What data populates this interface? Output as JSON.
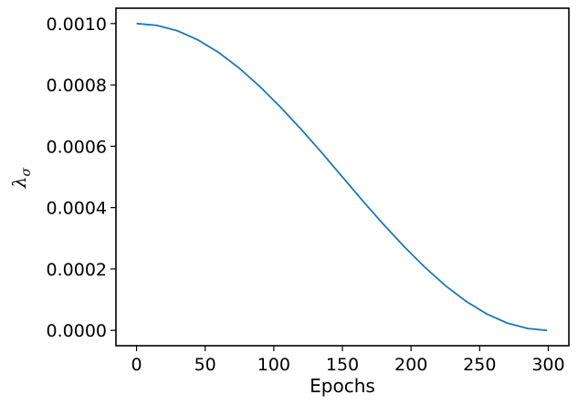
{
  "chart_data": {
    "type": "line",
    "title": "",
    "xlabel": "Epochs",
    "ylabel": {
      "symbol": "λ",
      "subscript": "σ"
    },
    "xlim": [
      -15,
      315
    ],
    "ylim": [
      -5e-05,
      0.00105
    ],
    "xticks": [
      0,
      50,
      100,
      150,
      200,
      250,
      300
    ],
    "xtick_labels": [
      "0",
      "50",
      "100",
      "150",
      "200",
      "250",
      "300"
    ],
    "yticks": [
      0,
      0.0002,
      0.0004,
      0.0006,
      0.0008,
      0.001
    ],
    "ytick_labels": [
      "0.0000",
      "0.0002",
      "0.0004",
      "0.0006",
      "0.0008",
      "0.0010"
    ],
    "grid": false,
    "colors": {
      "line": "#1f77b4",
      "axes": "#000000"
    },
    "series": [
      {
        "curve": "cosine decay",
        "x": [
          0,
          15,
          30,
          45,
          60,
          75,
          90,
          105,
          120,
          135,
          150,
          165,
          180,
          195,
          210,
          225,
          240,
          255,
          270,
          285,
          299
        ],
        "y": [
          0.001,
          0.000994,
          0.000976,
          0.000946,
          0.000905,
          0.000854,
          0.000794,
          0.000727,
          0.000655,
          0.000579,
          0.0005,
          0.000421,
          0.000345,
          0.000273,
          0.000206,
          0.000146,
          9.5e-05,
          5.4e-05,
          2.4e-05,
          6e-06,
          0.0
        ]
      }
    ]
  }
}
